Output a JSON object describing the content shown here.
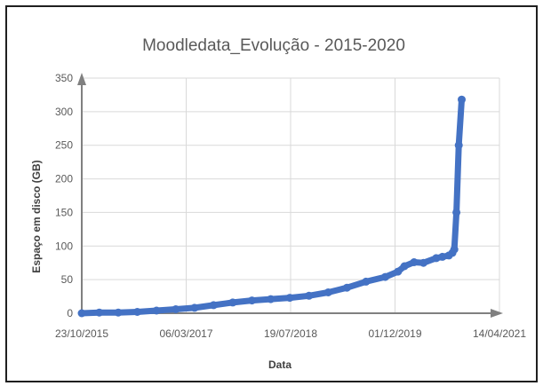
{
  "chart_data": {
    "type": "line",
    "title": "Moodledata_Evolução - 2015-2020",
    "xlabel": "Data",
    "ylabel": "Espaço em disco (GB)",
    "x_ticks": [
      "23/10/2015",
      "06/03/2017",
      "19/07/2018",
      "01/12/2019",
      "14/04/2021"
    ],
    "y_ticks": [
      "0",
      "50",
      "100",
      "150",
      "200",
      "250",
      "300",
      "350"
    ],
    "ylim": [
      0,
      350
    ],
    "grid": true,
    "legend": "none",
    "series_color": "#4472c4",
    "series": [
      {
        "x": [
          "2015-10-23",
          "2016-01-15",
          "2016-04-15",
          "2016-07-15",
          "2016-10-15",
          "2017-01-15",
          "2017-04-15",
          "2017-07-15",
          "2017-10-15",
          "2018-01-15",
          "2018-04-15",
          "2018-07-15",
          "2018-10-15",
          "2019-01-15",
          "2019-04-15",
          "2019-07-15",
          "2019-10-15",
          "2019-12-15",
          "2020-01-15",
          "2020-03-01",
          "2020-04-15",
          "2020-06-15",
          "2020-07-15",
          "2020-08-15",
          "2020-09-01",
          "2020-09-10",
          "2020-09-20",
          "2020-10-01",
          "2020-10-15"
        ],
        "values": [
          0,
          1,
          1,
          2,
          4,
          6,
          8,
          12,
          16,
          19,
          21,
          23,
          26,
          31,
          38,
          47,
          54,
          62,
          70,
          76,
          75,
          82,
          84,
          86,
          90,
          95,
          150,
          250,
          318
        ]
      }
    ]
  }
}
